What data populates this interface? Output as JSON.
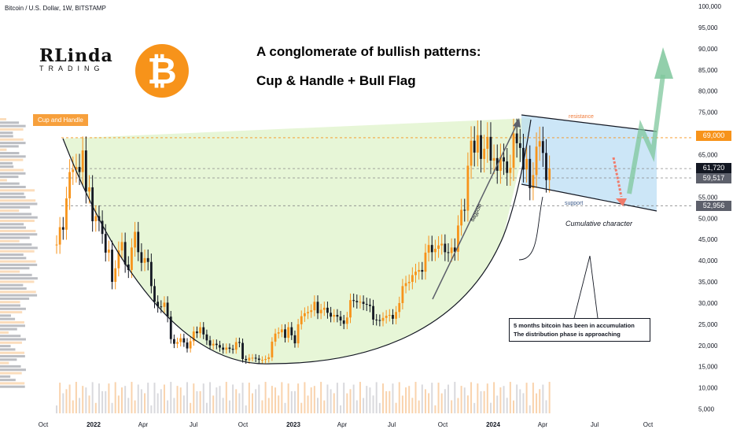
{
  "header": {
    "symbol_line": "Bitcoin / U.S. Dollar, 1W, BITSTAMP"
  },
  "logo": {
    "line1": "RLinda",
    "line2": "TRADING",
    "coin_glyph": "₿"
  },
  "titles": {
    "main": "A conglomerate of bullish patterns:",
    "sub": "Cup & Handle  +  Bull Flag"
  },
  "annotations": {
    "cup_and_handle": "Cup and Handle",
    "resistance": "resistance",
    "support": "support",
    "flagpole": "flagpole",
    "cumulative": "Cumulative character",
    "note_line1": "5 months bitcoin has been in accumulation",
    "note_line2": "The distribution phase is approaching"
  },
  "colors": {
    "up_candle": "#f7931a",
    "down_candle": "#131722",
    "cup_fill": "#e3f5d0",
    "flag_fill": "#b7dcf3",
    "green_arrow": "#7fc79c",
    "red_dashed": "#f07b6b"
  },
  "price_tags": [
    {
      "label": "69,000",
      "value": 69000,
      "color": "#f7931a"
    },
    {
      "label": "61,720",
      "value": 61720,
      "color": "#131722"
    },
    {
      "label": "59,517",
      "value": 59517,
      "color": "#5d606b"
    },
    {
      "label": "52,956",
      "value": 52956,
      "color": "#5d606b"
    }
  ],
  "chart_data": {
    "type": "candlestick",
    "title": "A conglomerate of bullish patterns: Cup & Handle + Bull Flag",
    "symbol": "Bitcoin / U.S. Dollar, 1W, BITSTAMP",
    "ylim": [
      5000,
      100000
    ],
    "y_ticks": [
      "100,000",
      "95,000",
      "90,000",
      "85,000",
      "80,000",
      "75,000",
      "70,000",
      "65,000",
      "60,000",
      "55,000",
      "50,000",
      "45,000",
      "40,000",
      "35,000",
      "30,000",
      "25,000",
      "20,000",
      "15,000",
      "10,000",
      "5,000"
    ],
    "x_ticks": [
      "Oct",
      "2022",
      "Apr",
      "Jul",
      "Oct",
      "2023",
      "Apr",
      "Jul",
      "Oct",
      "2024",
      "Apr",
      "Jul",
      "Oct"
    ],
    "levels": [
      69000,
      61720,
      59517,
      52956
    ],
    "weekly_closes": [
      43800,
      47900,
      47300,
      54700,
      60900,
      61500,
      62100,
      60900,
      66000,
      56300,
      57300,
      49300,
      50500,
      49400,
      46300,
      41900,
      42600,
      35000,
      38200,
      42400,
      44400,
      39100,
      37800,
      43100,
      46800,
      42000,
      39500,
      40600,
      39700,
      34000,
      30300,
      29200,
      29100,
      30100,
      26800,
      21500,
      20400,
      20800,
      21700,
      20700,
      19300,
      21000,
      23300,
      22900,
      24300,
      22600,
      21200,
      20000,
      20400,
      20100,
      19500,
      19000,
      19500,
      19200,
      19000,
      20800,
      20600,
      16800,
      16500,
      17100,
      17100,
      16900,
      16600,
      16600,
      16800,
      17200,
      20900,
      22800,
      23100,
      23800,
      21800,
      24300,
      22400,
      20500,
      25000,
      26900,
      27600,
      27900,
      28300,
      30300,
      27600,
      28400,
      28900,
      27700,
      26800,
      27200,
      26800,
      25900,
      25100,
      26600,
      30700,
      30500,
      30200,
      30300,
      29800,
      29600,
      29300,
      26100,
      26000,
      25800,
      26500,
      27000,
      27200,
      26300,
      27900,
      30000,
      34000,
      34700,
      35000,
      36600,
      37400,
      37800,
      37400,
      41900,
      43700,
      42000,
      42800,
      43600,
      44000,
      42000,
      41800,
      43100,
      42100,
      48300,
      52000,
      51800,
      62400,
      68300,
      65500,
      69600,
      64000,
      66400,
      69200,
      63600,
      64200,
      61200,
      64400,
      63400,
      60700,
      61900,
      70000,
      67700,
      66600,
      61500,
      64000,
      57100,
      60200,
      66900,
      68200,
      65400,
      59000,
      61720
    ]
  }
}
